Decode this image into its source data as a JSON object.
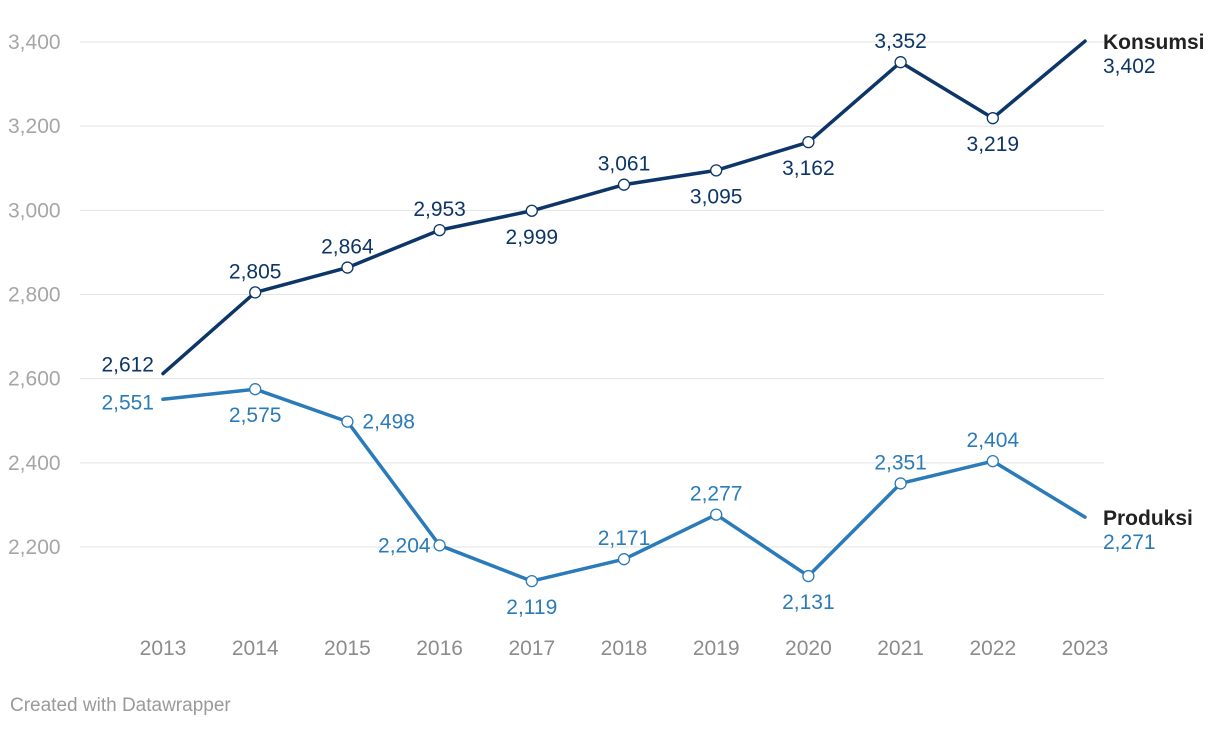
{
  "footer": {
    "credit": "Created with Datawrapper"
  },
  "chart_data": {
    "type": "line",
    "x": [
      "2013",
      "2014",
      "2015",
      "2016",
      "2017",
      "2018",
      "2019",
      "2020",
      "2021",
      "2022",
      "2023"
    ],
    "ylim": [
      2100,
      3400
    ],
    "yticks": [
      "2,200",
      "2,400",
      "2,600",
      "2,800",
      "3,000",
      "3,200",
      "3,400"
    ],
    "ytick_values": [
      2200,
      2400,
      2600,
      2800,
      3000,
      3200,
      3400
    ],
    "grid": true,
    "legend": "end-of-line labels",
    "series": [
      {
        "name": "Konsumsi",
        "color": "#0d3668",
        "values": [
          2612,
          2805,
          2864,
          2953,
          2999,
          3061,
          3095,
          3162,
          3352,
          3219,
          3402
        ],
        "labels": [
          "2,612",
          "2,805",
          "2,864",
          "2,953",
          "2,999",
          "3,061",
          "3,095",
          "3,162",
          "3,352",
          "3,219",
          "3,402"
        ]
      },
      {
        "name": "Produksi",
        "color": "#2b7bb9",
        "values": [
          2551,
          2575,
          2498,
          2204,
          2119,
          2171,
          2277,
          2131,
          2351,
          2404,
          2271
        ],
        "labels": [
          "2,551",
          "2,575",
          "2,498",
          "2,204",
          "2,119",
          "2,171",
          "2,277",
          "2,131",
          "2,351",
          "2,404",
          "2,271"
        ]
      }
    ]
  }
}
